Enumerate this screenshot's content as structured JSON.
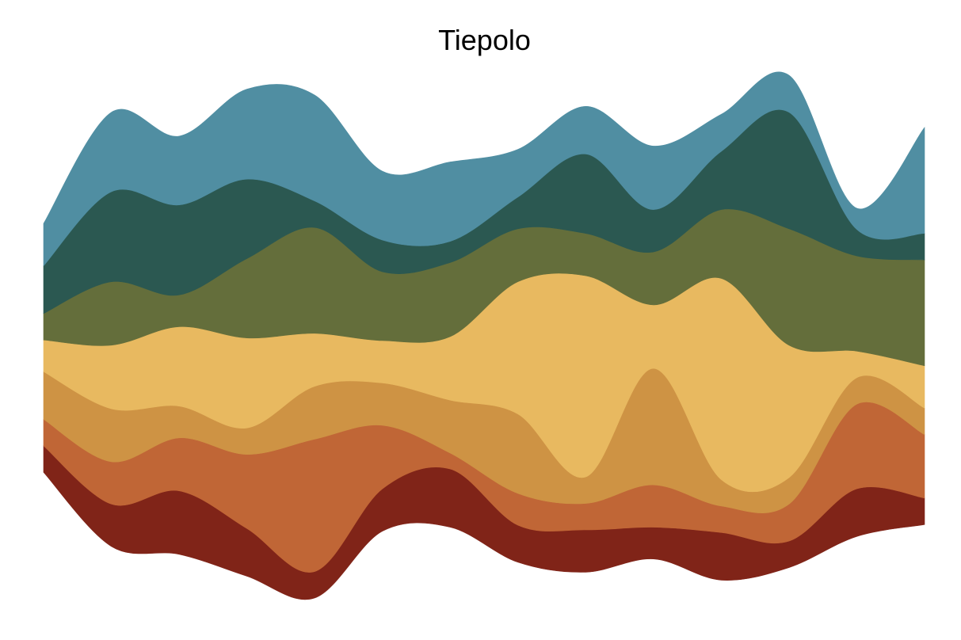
{
  "chart_data": {
    "type": "streamgraph",
    "title": "Tiepolo",
    "xlabel": "",
    "ylabel": "",
    "grid": false,
    "legend": "none",
    "axes_visible": false,
    "baseline": "wiggle",
    "interpolation": "smooth",
    "x": [
      0,
      1,
      2,
      3,
      4,
      5,
      6,
      7,
      8,
      9,
      10,
      11,
      12,
      13
    ],
    "series": [
      {
        "color": "#802418",
        "values": [
          5,
          8,
          12,
          9,
          5,
          8,
          11,
          7,
          8,
          6,
          9,
          5,
          9,
          5
        ]
      },
      {
        "color": "#C06636",
        "values": [
          5,
          8,
          10,
          14,
          25,
          12,
          3,
          6,
          5,
          8,
          5,
          7,
          16,
          12
        ]
      },
      {
        "color": "#CE9344",
        "values": [
          9,
          10,
          6,
          5,
          10,
          8,
          10,
          15,
          5,
          22,
          5,
          5,
          5,
          5
        ]
      },
      {
        "color": "#E8B960",
        "values": [
          6,
          12,
          15,
          17,
          10,
          8,
          12,
          25,
          38,
          12,
          38,
          25,
          5,
          8
        ]
      },
      {
        "color": "#646E3B",
        "values": [
          5,
          12,
          6,
          15,
          20,
          13,
          14,
          10,
          8,
          10,
          13,
          22,
          18,
          20
        ]
      },
      {
        "color": "#2B5851",
        "values": [
          9,
          17,
          17,
          15,
          5,
          6,
          4,
          6,
          15,
          8,
          11,
          22,
          5,
          5
        ]
      },
      {
        "color": "#508EA2",
        "values": [
          8,
          15,
          13,
          17,
          20,
          13,
          15,
          9,
          9,
          12,
          7,
          7,
          4,
          20
        ]
      }
    ]
  }
}
